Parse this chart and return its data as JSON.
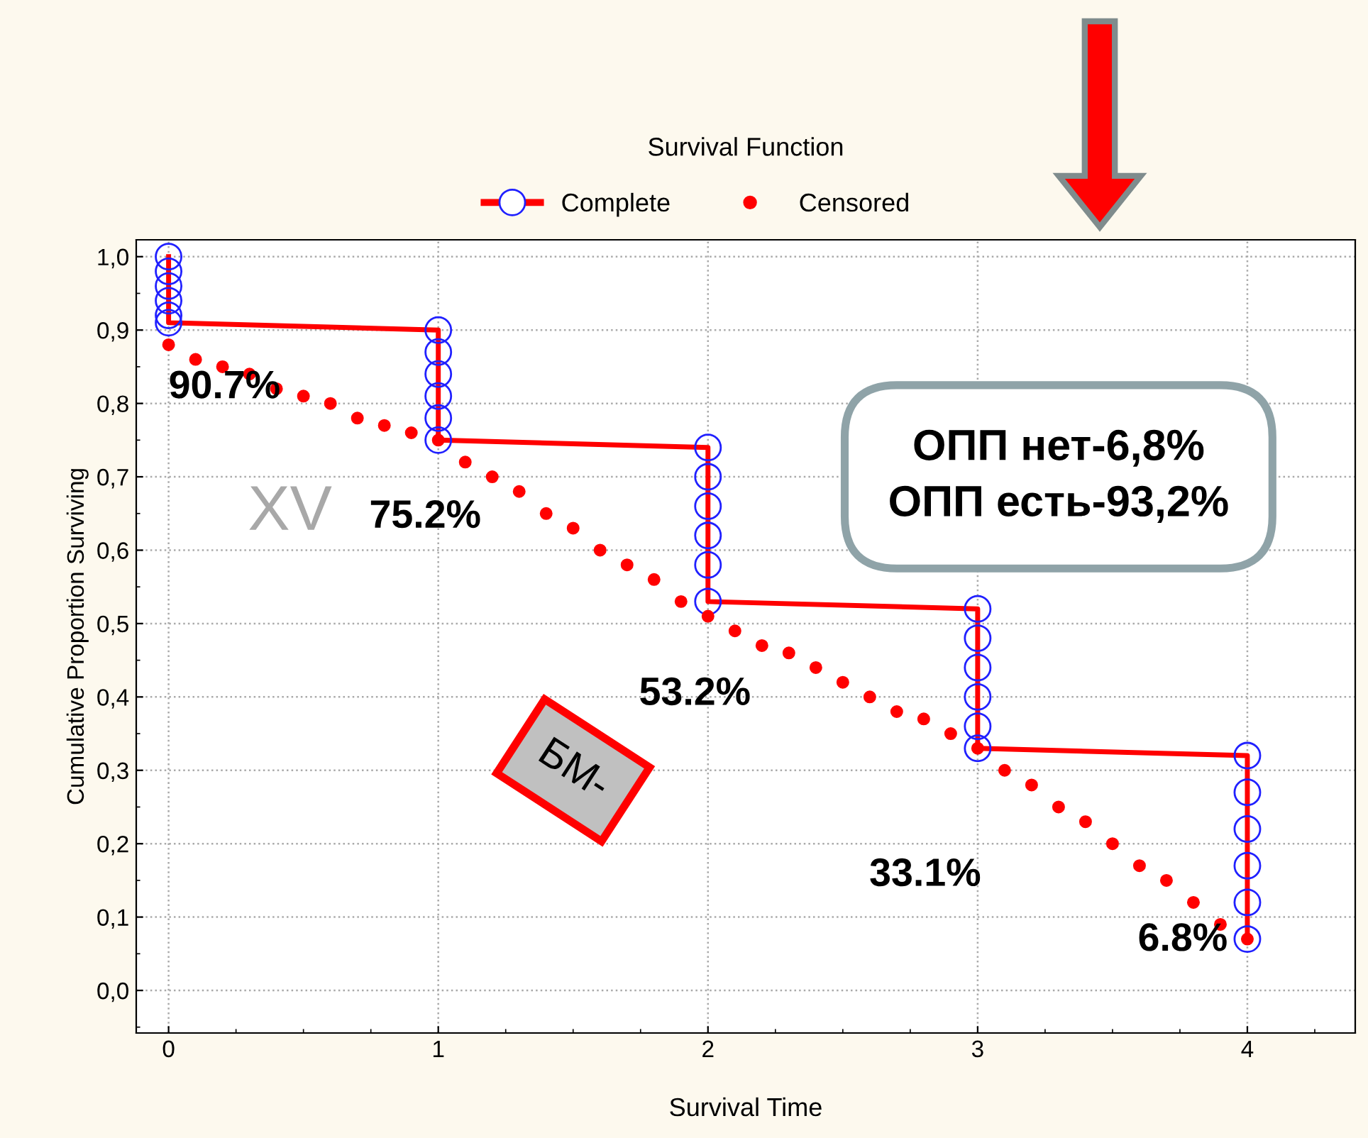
{
  "chart_data": {
    "type": "line",
    "title": "Survival Function",
    "xlabel": "Survival Time",
    "ylabel": "Cumulative Proportion Surviving",
    "xlim": [
      -0.12,
      4.4
    ],
    "ylim": [
      -0.058,
      1.023
    ],
    "xticks": [
      0,
      1,
      2,
      3,
      4
    ],
    "yticks": [
      {
        "value": 0,
        "label": "0,0"
      },
      {
        "value": 0.1,
        "label": "0,1"
      },
      {
        "value": 0.2,
        "label": "0,2"
      },
      {
        "value": 0.3,
        "label": "0,3"
      },
      {
        "value": 0.4,
        "label": "0,4"
      },
      {
        "value": 0.5,
        "label": "0,5"
      },
      {
        "value": 0.6,
        "label": "0,6"
      },
      {
        "value": 0.7,
        "label": "0,7"
      },
      {
        "value": 0.8,
        "label": "0,8"
      },
      {
        "value": 0.9,
        "label": "0,9"
      },
      {
        "value": 1.0,
        "label": "1,0"
      }
    ],
    "grid": true,
    "legend": "top",
    "series": [
      {
        "name": "Complete",
        "color": "#ff0000",
        "marker": "circle",
        "x": [
          0,
          0,
          0,
          0,
          0,
          0,
          1,
          1,
          1,
          1,
          1,
          1,
          2,
          2,
          2,
          2,
          2,
          2,
          3,
          3,
          3,
          3,
          3,
          3,
          4,
          4,
          4,
          4,
          4,
          4
        ],
        "values": [
          1.0,
          0.98,
          0.96,
          0.94,
          0.92,
          0.91,
          0.9,
          0.87,
          0.84,
          0.81,
          0.78,
          0.75,
          0.74,
          0.7,
          0.66,
          0.62,
          0.58,
          0.53,
          0.52,
          0.48,
          0.44,
          0.4,
          0.36,
          0.33,
          0.32,
          0.27,
          0.22,
          0.17,
          0.12,
          0.07
        ]
      },
      {
        "name": "Censored",
        "type": "scatter",
        "color": "#ff0000",
        "marker": "circle",
        "x": [
          0,
          0.1,
          0.2,
          0.3,
          0.4,
          0.5,
          0.6,
          0.7,
          0.8,
          0.9,
          1,
          1.1,
          1.2,
          1.3,
          1.4,
          1.5,
          1.6,
          1.7,
          1.8,
          1.9,
          2,
          2.1,
          2.2,
          2.3,
          2.4,
          2.5,
          2.6,
          2.7,
          2.8,
          2.9,
          3,
          3.1,
          3.2,
          3.3,
          3.4,
          3.5,
          3.6,
          3.7,
          3.8,
          3.9,
          4
        ],
        "values": [
          0.88,
          0.86,
          0.85,
          0.84,
          0.82,
          0.81,
          0.8,
          0.78,
          0.77,
          0.76,
          0.75,
          0.72,
          0.7,
          0.68,
          0.65,
          0.63,
          0.6,
          0.58,
          0.56,
          0.53,
          0.51,
          0.49,
          0.47,
          0.46,
          0.44,
          0.42,
          0.4,
          0.38,
          0.37,
          0.35,
          0.33,
          0.3,
          0.28,
          0.25,
          0.23,
          0.2,
          0.17,
          0.15,
          0.12,
          0.09,
          0.07
        ]
      }
    ],
    "annotations": [
      {
        "text": "90.7%",
        "x": 0,
        "y": 0.907
      },
      {
        "text": "75.2%",
        "x": 1,
        "y": 0.752
      },
      {
        "text": "53.2%",
        "x": 2,
        "y": 0.532
      },
      {
        "text": "33.1%",
        "x": 3,
        "y": 0.331
      },
      {
        "text": "6.8%",
        "x": 4,
        "y": 0.068
      },
      "ОПП нет-6,8%\nОПП есть-93,2%",
      "БМ-",
      "XV"
    ]
  }
}
